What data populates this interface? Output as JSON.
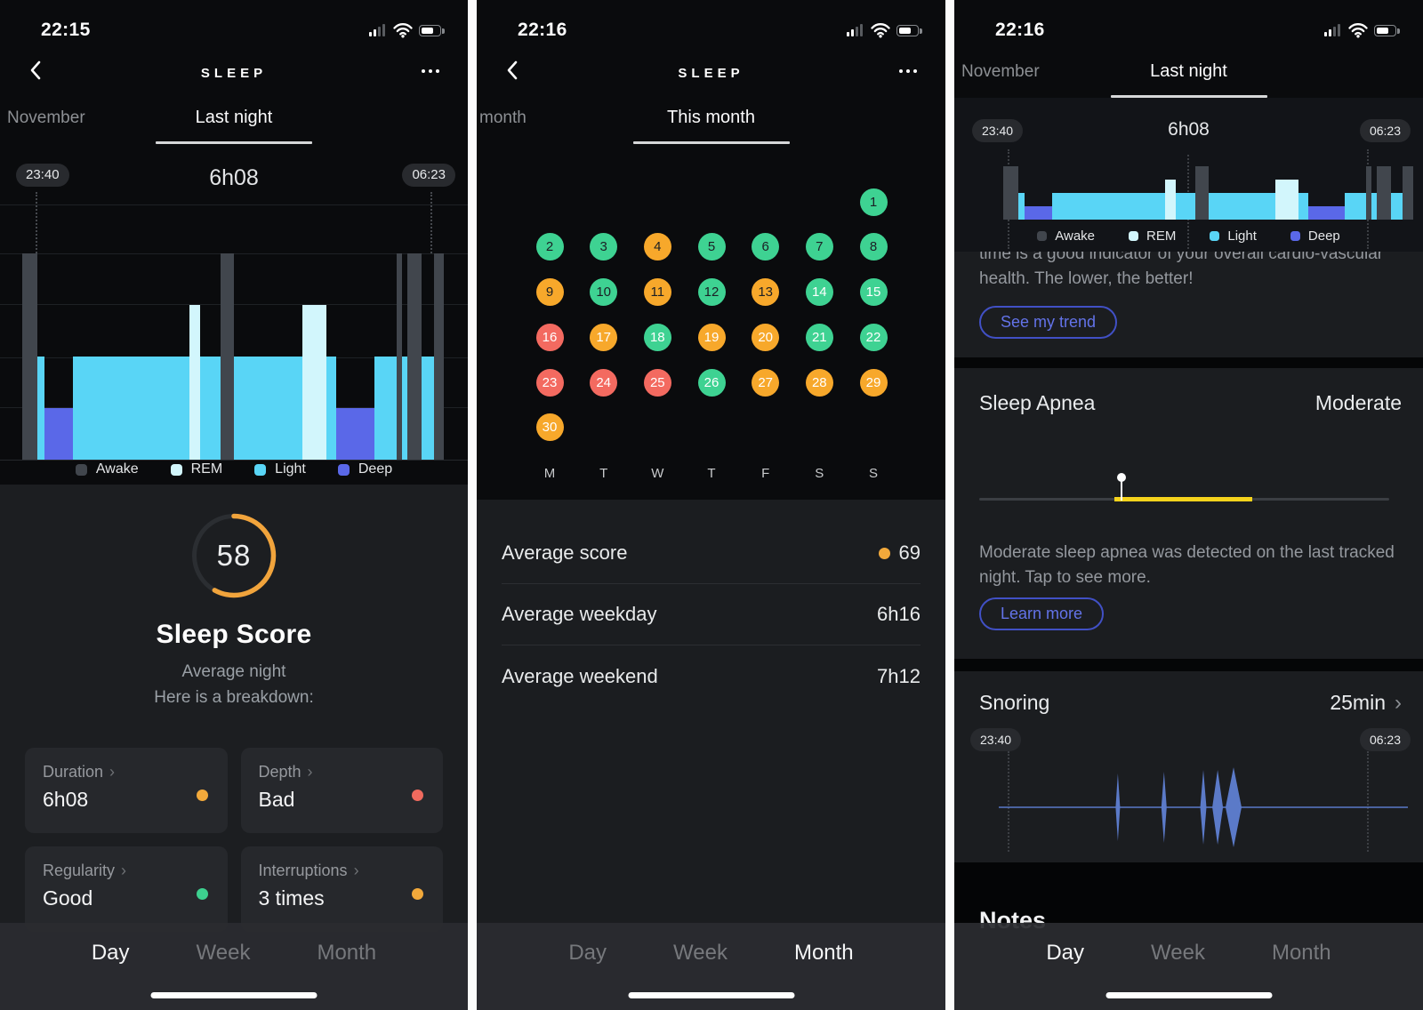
{
  "app": {
    "title": "SLEEP",
    "chevron_glyph": "›"
  },
  "colors": {
    "stages": {
      "awake": "#41464d",
      "rem": "#d2f6fc",
      "light": "#59d5f6",
      "deep": "#5a68e8"
    },
    "calendar": {
      "g": "#3ed292",
      "o": "#f7a82b",
      "r": "#f36a60"
    },
    "calendar_text": {
      "dark": "#1b1f24",
      "light": "#ffffff"
    },
    "score_arc": "#f1a43c",
    "accent_button": "#6373e9",
    "apnea_band": "#f6d31c",
    "snore_line": "#5b7ac8"
  },
  "panels": {
    "left": {
      "status_time": "22:15",
      "tabs": [
        {
          "label": "November",
          "active": false
        },
        {
          "label": "Last night",
          "active": true
        }
      ],
      "night": {
        "start": "23:40",
        "duration": "6h08",
        "end": "06:23"
      },
      "legend": [
        {
          "label": "Awake",
          "color": "#41464d"
        },
        {
          "label": "REM",
          "color": "#d2f6fc"
        },
        {
          "label": "Light",
          "color": "#59d5f6"
        },
        {
          "label": "Deep",
          "color": "#5a68e8"
        }
      ],
      "score": {
        "value": "58",
        "pct": 58,
        "title": "Sleep Score",
        "subtitle1": "Average night",
        "subtitle2": "Here is a breakdown:"
      },
      "cards": [
        {
          "label": "Duration",
          "value": "6h08",
          "dot": "#f2a93b"
        },
        {
          "label": "Depth",
          "value": "Bad",
          "dot": "#ef6a5e"
        },
        {
          "label": "Regularity",
          "value": "Good",
          "dot": "#3dd08f"
        },
        {
          "label": "Interruptions",
          "value": "3 times",
          "dot": "#f2a93b"
        }
      ],
      "bottom_nav": [
        {
          "label": "Day",
          "active": true
        },
        {
          "label": "Week",
          "active": false
        },
        {
          "label": "Month",
          "active": false
        }
      ]
    },
    "middle": {
      "status_time": "22:16",
      "tabs": [
        {
          "label": "month",
          "active": false
        },
        {
          "label": "This month",
          "active": true
        }
      ],
      "weekday_letters": [
        "M",
        "T",
        "W",
        "T",
        "F",
        "S",
        "S"
      ],
      "averages": [
        {
          "label": "Average score",
          "value": "69",
          "dot": "#f2a93b"
        },
        {
          "label": "Average weekday",
          "value": "6h16"
        },
        {
          "label": "Average weekend",
          "value": "7h12"
        }
      ],
      "bottom_nav": [
        {
          "label": "Day",
          "active": false
        },
        {
          "label": "Week",
          "active": false
        },
        {
          "label": "Month",
          "active": true
        }
      ]
    },
    "right": {
      "status_time": "22:16",
      "tabs": [
        {
          "label": "November",
          "active": false
        },
        {
          "label": "Last night",
          "active": true
        }
      ],
      "night": {
        "start": "23:40",
        "duration": "6h08",
        "end": "06:23"
      },
      "clipped_text_line1": "time is a good indicator of your overall cardio-vascular",
      "clipped_text_line2": "health. The lower, the better!",
      "trend_button": "See my trend",
      "apnea": {
        "title": "Sleep Apnea",
        "status": "Moderate",
        "band_start_pct": 33,
        "band_end_pct": 66.5,
        "marker_pct": 34.5,
        "description": "Moderate sleep apnea was detected on the last tracked night. Tap to see more.",
        "button": "Learn more"
      },
      "snoring": {
        "title": "Snoring",
        "value": "25min",
        "start": "23:40",
        "end": "06:23"
      },
      "notes_title": "Notes",
      "bottom_nav": [
        {
          "label": "Day",
          "active": true
        },
        {
          "label": "Week",
          "active": false
        },
        {
          "label": "Month",
          "active": false
        }
      ]
    }
  },
  "chart_data": [
    {
      "type": "area",
      "name": "sleep-hypnogram",
      "title": "Sleep stages last night 23:40-06:23, total 6h08",
      "stage_levels": {
        "awake": 100,
        "rem": 75,
        "light": 50,
        "deep": 25
      },
      "segments": [
        [
          "awake",
          3.6
        ],
        [
          "light",
          1.7
        ],
        [
          "deep",
          6.7
        ],
        [
          "light",
          27.5
        ],
        [
          "rem",
          2.5
        ],
        [
          "light",
          4.8
        ],
        [
          "awake",
          3.2
        ],
        [
          "light",
          16.2
        ],
        [
          "rem",
          5.7
        ],
        [
          "light",
          2.3
        ],
        [
          "deep",
          9.0
        ],
        [
          "light",
          5.2
        ],
        [
          "awake",
          1.3
        ],
        [
          "light",
          1.2
        ],
        [
          "awake",
          3.4
        ],
        [
          "light",
          3.0
        ],
        [
          "awake",
          2.4
        ]
      ]
    },
    {
      "type": "heatmap",
      "name": "month-sleep-scores",
      "legend": "green=good, orange=average, red=bad",
      "days": [
        {
          "day": 1,
          "c": "g",
          "t": "dark"
        },
        {
          "day": 2,
          "c": "g",
          "t": "dark"
        },
        {
          "day": 3,
          "c": "g",
          "t": "dark"
        },
        {
          "day": 4,
          "c": "o",
          "t": "dark"
        },
        {
          "day": 5,
          "c": "g",
          "t": "dark"
        },
        {
          "day": 6,
          "c": "g",
          "t": "dark"
        },
        {
          "day": 7,
          "c": "g",
          "t": "dark"
        },
        {
          "day": 8,
          "c": "g",
          "t": "dark"
        },
        {
          "day": 9,
          "c": "o",
          "t": "dark"
        },
        {
          "day": 10,
          "c": "g",
          "t": "dark"
        },
        {
          "day": 11,
          "c": "o",
          "t": "dark"
        },
        {
          "day": 12,
          "c": "g",
          "t": "dark"
        },
        {
          "day": 13,
          "c": "o",
          "t": "dark"
        },
        {
          "day": 14,
          "c": "g",
          "t": "light"
        },
        {
          "day": 15,
          "c": "g",
          "t": "light"
        },
        {
          "day": 16,
          "c": "r",
          "t": "light"
        },
        {
          "day": 17,
          "c": "o",
          "t": "light"
        },
        {
          "day": 18,
          "c": "g",
          "t": "light"
        },
        {
          "day": 19,
          "c": "o",
          "t": "light"
        },
        {
          "day": 20,
          "c": "o",
          "t": "light"
        },
        {
          "day": 21,
          "c": "g",
          "t": "light"
        },
        {
          "day": 22,
          "c": "g",
          "t": "light"
        },
        {
          "day": 23,
          "c": "r",
          "t": "light"
        },
        {
          "day": 24,
          "c": "r",
          "t": "light"
        },
        {
          "day": 25,
          "c": "r",
          "t": "light"
        },
        {
          "day": 26,
          "c": "g",
          "t": "light"
        },
        {
          "day": 27,
          "c": "o",
          "t": "light"
        },
        {
          "day": 28,
          "c": "o",
          "t": "light"
        },
        {
          "day": 29,
          "c": "o",
          "t": "light"
        },
        {
          "day": 30,
          "c": "o",
          "t": "light"
        }
      ]
    },
    {
      "type": "line",
      "name": "snoring-events",
      "x_range": [
        "23:40",
        "06:23"
      ],
      "spikes": [
        {
          "x_pct": 29.1,
          "half_h": 38,
          "w": 2.5
        },
        {
          "x_pct": 40.4,
          "half_h": 40,
          "w": 3
        },
        {
          "x_pct": 50.0,
          "half_h": 42,
          "w": 3.5
        },
        {
          "x_pct": 53.5,
          "half_h": 42,
          "w": 6
        },
        {
          "x_pct": 57.4,
          "half_h": 45,
          "w": 9
        }
      ]
    }
  ]
}
